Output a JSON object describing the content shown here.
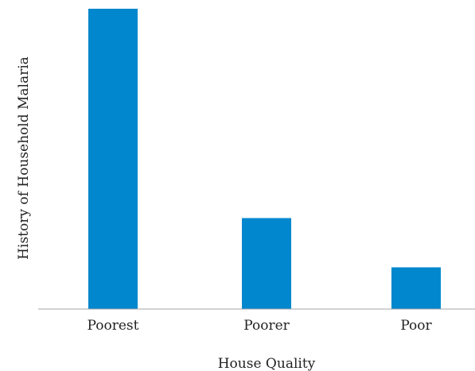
{
  "chart_data": {
    "type": "bar",
    "title": "",
    "xlabel": "House Quality",
    "ylabel": "History of Household Malaria",
    "categories": [
      "Poorest",
      "Poorer",
      "Poor"
    ],
    "values": [
      100,
      30.3,
      13.9
    ],
    "ylim": [
      0,
      100
    ],
    "grid": false,
    "legend": "none",
    "bar_color": "#0087cd",
    "axis_color": "#a6a6a6"
  }
}
